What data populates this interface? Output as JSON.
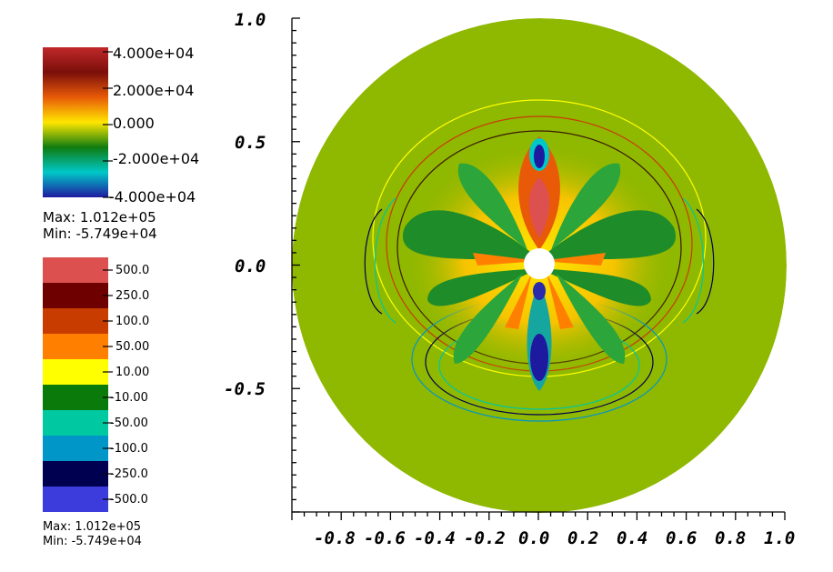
{
  "colors": {
    "background_field": "#8fb800",
    "frame": "#000000"
  },
  "colorbar_continuous": {
    "labels": [
      "4.000e+04",
      "2.000e+04",
      "0.000",
      "-2.000e+04",
      "-4.000e+04"
    ],
    "stops": [
      "#c0282a",
      "#7a0f0a",
      "#e85a08",
      "#ffe600",
      "#0f7c10",
      "#00c8c8",
      "#1e1aa0"
    ],
    "max_text": "Max:  1.012e+05",
    "min_text": "Min: -5.749e+04"
  },
  "colorbar_discrete": {
    "labels": [
      "500.0",
      "250.0",
      "100.0",
      "50.00",
      "10.00",
      "-10.00",
      "-50.00",
      "-100.0",
      "-250.0",
      "-500.0"
    ],
    "colors": [
      "#dc5050",
      "#6e0000",
      "#c83c00",
      "#ff8000",
      "#ffff00",
      "#0a7a0a",
      "#00c8a0",
      "#0096c8",
      "#000050",
      "#3c3cdc"
    ],
    "max_text": "Max:  1.012e+05",
    "min_text": "Min: -5.749e+04"
  },
  "chart_data": {
    "type": "heatmap",
    "xlim": [
      -1.0,
      1.0
    ],
    "ylim": [
      -1.0,
      1.0
    ],
    "x_tick_labels": [
      "-0.8",
      "-0.6",
      "-0.4",
      "-0.2",
      "0.0",
      "0.2",
      "0.4",
      "0.6",
      "0.8",
      "1.0"
    ],
    "x_tick_values": [
      -0.8,
      -0.6,
      -0.4,
      -0.2,
      0.0,
      0.2,
      0.4,
      0.6,
      0.8,
      1.0
    ],
    "y_tick_labels": [
      "1.0",
      "0.5",
      "0.0",
      "-0.5"
    ],
    "y_tick_values": [
      1.0,
      0.5,
      0.0,
      -0.5
    ],
    "domain": "disk",
    "domain_radius": 1.0,
    "inner_hole_radius": 0.06,
    "color_range": [
      -40000,
      40000
    ],
    "contour_levels": [
      500,
      250,
      100,
      50,
      10,
      -10,
      -50,
      -100,
      -250,
      -500
    ],
    "data_max": 101200,
    "data_min": -57490
  }
}
